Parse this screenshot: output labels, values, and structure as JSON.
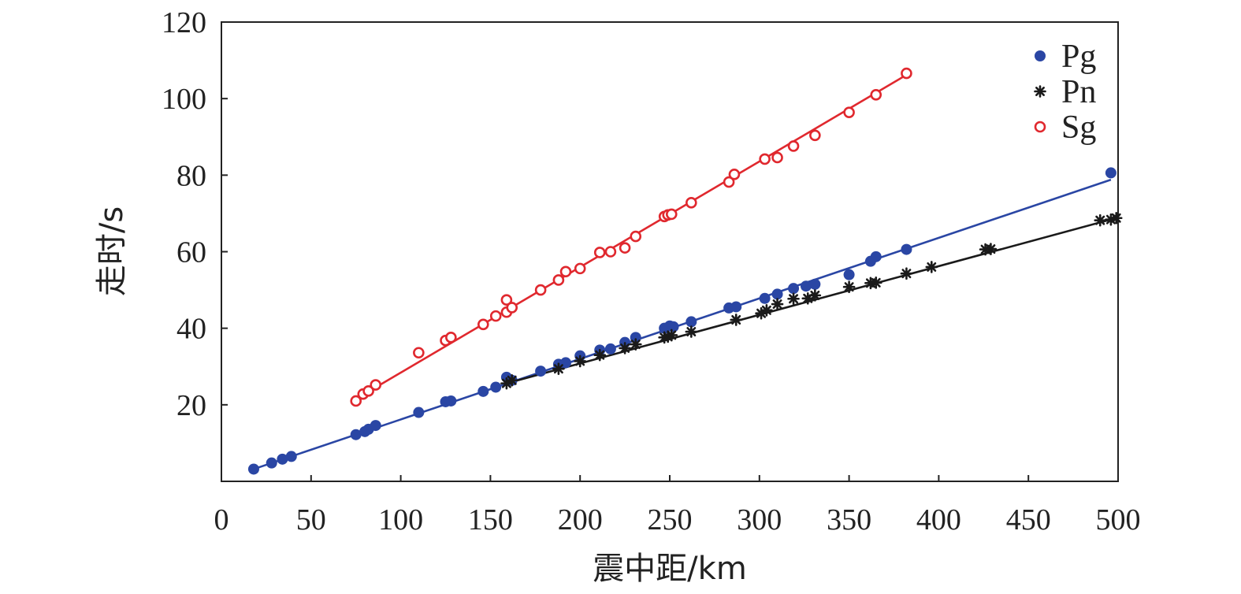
{
  "chart_data": {
    "type": "scatter",
    "xlabel": "震中距/km",
    "ylabel": "走时/s",
    "xlim": [
      0,
      500
    ],
    "ylim": [
      0,
      120
    ],
    "x_ticks": [
      0,
      50,
      100,
      150,
      200,
      250,
      300,
      350,
      400,
      450,
      500
    ],
    "y_ticks": [
      20,
      40,
      60,
      80,
      100,
      120
    ],
    "grid": false,
    "legend_position": "top-right",
    "series": [
      {
        "name": "Pg",
        "color": "#2a46a4",
        "marker": "filled-circle",
        "points": [
          [
            18,
            3.2
          ],
          [
            28,
            4.8
          ],
          [
            34,
            5.8
          ],
          [
            39,
            6.5
          ],
          [
            75,
            12.2
          ],
          [
            80,
            13.0
          ],
          [
            82,
            13.6
          ],
          [
            86,
            14.6
          ],
          [
            110,
            18.0
          ],
          [
            125,
            20.8
          ],
          [
            128,
            21.0
          ],
          [
            146,
            23.5
          ],
          [
            153,
            24.6
          ],
          [
            159,
            27.2
          ],
          [
            162,
            26.4
          ],
          [
            178,
            28.8
          ],
          [
            188,
            30.6
          ],
          [
            192,
            31.0
          ],
          [
            200,
            32.8
          ],
          [
            211,
            34.3
          ],
          [
            217,
            34.6
          ],
          [
            225,
            36.3
          ],
          [
            231,
            37.6
          ],
          [
            247,
            40.0
          ],
          [
            250,
            40.6
          ],
          [
            252,
            40.4
          ],
          [
            262,
            41.7
          ],
          [
            283,
            45.3
          ],
          [
            287,
            45.6
          ],
          [
            303,
            47.8
          ],
          [
            310,
            48.9
          ],
          [
            319,
            50.4
          ],
          [
            326,
            51.0
          ],
          [
            331,
            51.5
          ],
          [
            350,
            54.0
          ],
          [
            362,
            57.5
          ],
          [
            365,
            58.7
          ],
          [
            382,
            60.6
          ],
          [
            496,
            80.6
          ]
        ],
        "fit": [
          [
            18,
            3.2
          ],
          [
            496,
            78.8
          ]
        ]
      },
      {
        "name": "Pn",
        "color": "#1a1a1a",
        "marker": "asterisk",
        "points": [
          [
            159,
            25.6
          ],
          [
            162,
            26.4
          ],
          [
            188,
            29.4
          ],
          [
            200,
            31.4
          ],
          [
            211,
            33.0
          ],
          [
            225,
            34.8
          ],
          [
            231,
            35.8
          ],
          [
            247,
            37.6
          ],
          [
            249,
            37.8
          ],
          [
            251,
            38.2
          ],
          [
            262,
            39.1
          ],
          [
            287,
            42.2
          ],
          [
            301,
            43.9
          ],
          [
            304,
            44.7
          ],
          [
            310,
            46.3
          ],
          [
            319,
            47.7
          ],
          [
            327,
            47.8
          ],
          [
            331,
            48.6
          ],
          [
            350,
            50.8
          ],
          [
            362,
            51.8
          ],
          [
            365,
            51.9
          ],
          [
            382,
            54.3
          ],
          [
            396,
            56.0
          ],
          [
            426,
            60.6
          ],
          [
            429,
            60.7
          ],
          [
            490,
            68.2
          ],
          [
            496,
            68.4
          ],
          [
            499,
            68.8
          ]
        ],
        "fit": [
          [
            159,
            25.6
          ],
          [
            499,
            68.8
          ]
        ]
      },
      {
        "name": "Sg",
        "color": "#e0282e",
        "marker": "open-circle",
        "points": [
          [
            75,
            21.0
          ],
          [
            79,
            22.8
          ],
          [
            82,
            23.6
          ],
          [
            86,
            25.2
          ],
          [
            110,
            33.6
          ],
          [
            125,
            36.8
          ],
          [
            128,
            37.6
          ],
          [
            146,
            41.0
          ],
          [
            153,
            43.2
          ],
          [
            159,
            44.2
          ],
          [
            159,
            47.4
          ],
          [
            162,
            45.4
          ],
          [
            178,
            50.0
          ],
          [
            188,
            52.6
          ],
          [
            192,
            54.8
          ],
          [
            200,
            55.6
          ],
          [
            211,
            59.8
          ],
          [
            217,
            60.0
          ],
          [
            225,
            61.0
          ],
          [
            231,
            64.0
          ],
          [
            247,
            69.2
          ],
          [
            249,
            69.6
          ],
          [
            251,
            69.8
          ],
          [
            262,
            72.8
          ],
          [
            283,
            78.2
          ],
          [
            286,
            80.2
          ],
          [
            303,
            84.2
          ],
          [
            310,
            84.6
          ],
          [
            319,
            87.6
          ],
          [
            331,
            90.4
          ],
          [
            350,
            96.4
          ],
          [
            365,
            101.0
          ],
          [
            382,
            106.6
          ]
        ],
        "fit": [
          [
            75,
            21.5
          ],
          [
            382,
            106.2
          ]
        ]
      }
    ]
  }
}
